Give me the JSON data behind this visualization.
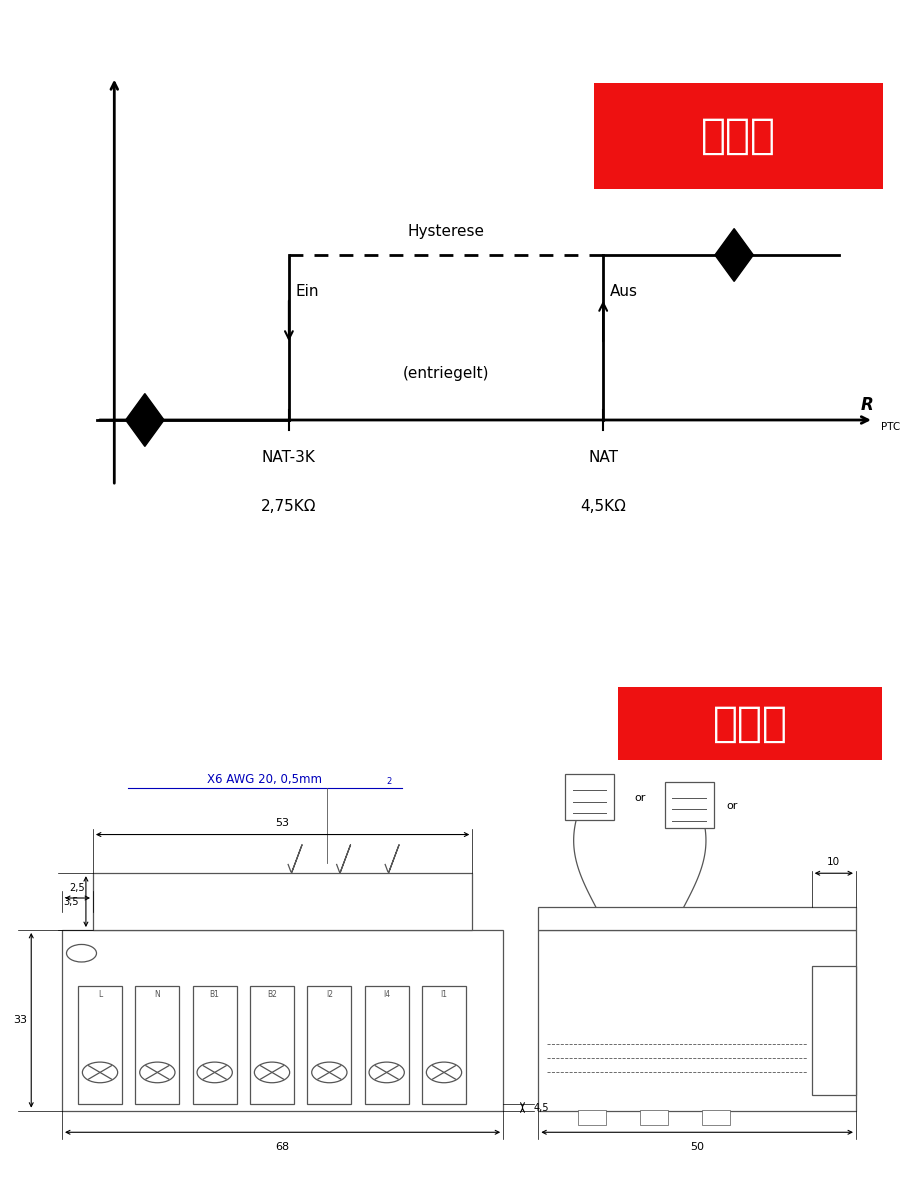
{
  "bg_color": "#ffffff",
  "title1": "时序图",
  "title2": "尺寸图",
  "title_bg": "#ee1111",
  "title_fg": "#ffffff",
  "timing_label_hysterese": "Hysterese",
  "timing_label_ein": "Ein",
  "timing_label_aus": "Aus",
  "timing_label_entriegelt": "(entriegelt)",
  "timing_label_nat3k": "NAT-3K",
  "timing_label_nat": "NAT",
  "timing_label_rptc_r": "R",
  "timing_label_rptc_sub": "PTC",
  "timing_label_275": "2,75KΩ",
  "timing_label_45": "4,5KΩ",
  "dim_label_x6": "X6 AWG 20, 0,5mm",
  "dim_label_x6_sup": "2",
  "dim_label_or": "or",
  "dim_35": "3,5",
  "dim_25": "2,5",
  "dim_53": "53",
  "dim_33": "33",
  "dim_45": "4,5",
  "dim_68": "68",
  "dim_10": "10",
  "dim_50": "50",
  "term_labels": [
    "L",
    "N",
    "B1",
    "B2",
    "I2",
    "I4",
    "I1"
  ]
}
